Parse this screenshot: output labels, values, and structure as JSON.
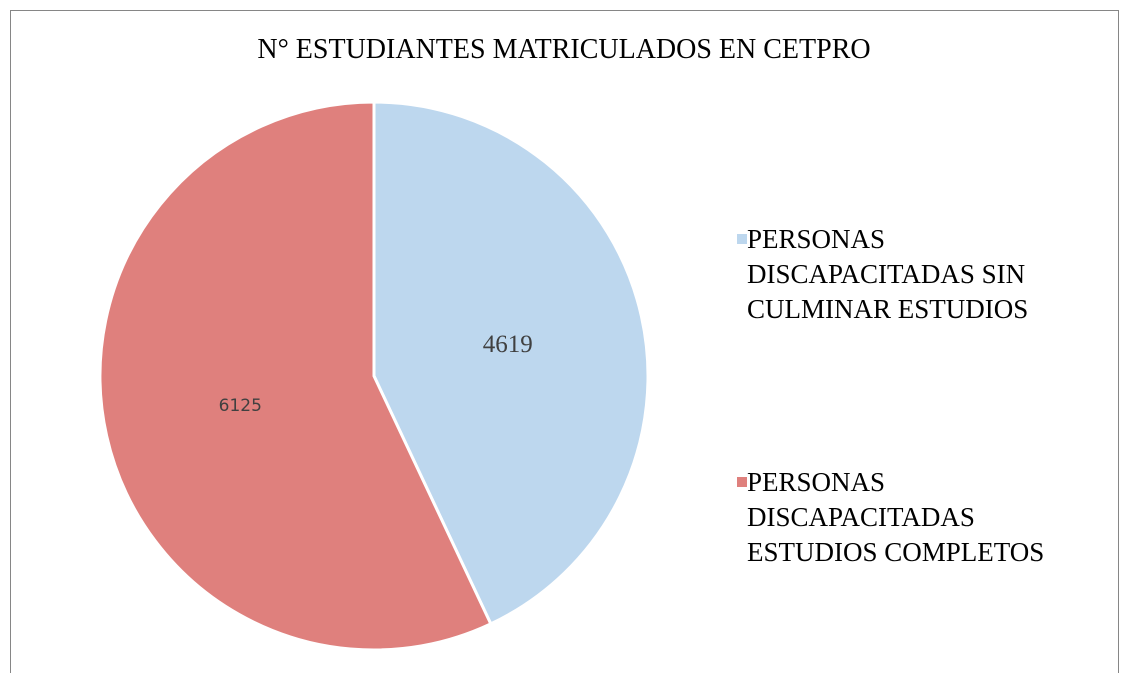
{
  "chart_data": {
    "type": "pie",
    "title": "N° ESTUDIANTES MATRICULADOS EN CETPRO",
    "categories": [
      "PERSONAS DISCAPACITADAS SIN CULMINAR ESTUDIOS",
      "PERSONAS DISCAPACITADAS ESTUDIOS COMPLETOS"
    ],
    "values": [
      4619,
      6125
    ],
    "colors": [
      "#bdd7ee",
      "#df807d"
    ],
    "legend": "right"
  }
}
